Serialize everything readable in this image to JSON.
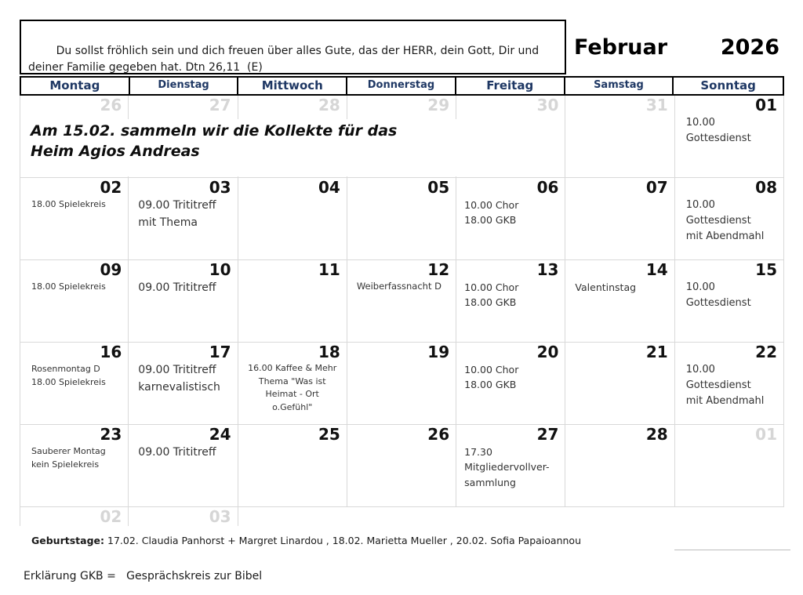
{
  "header": {
    "quote": "Du sollst fröhlich sein und dich freuen über alles Gute, das der HERR, dein Gott, Dir und deiner Familie gegeben hat. Dtn 26,11  (E)",
    "month": "Februar",
    "year": "2026"
  },
  "weekdays": [
    {
      "label": "Montag",
      "size": "big"
    },
    {
      "label": "Dienstag",
      "size": "small"
    },
    {
      "label": "Mittwoch",
      "size": "big"
    },
    {
      "label": "Donnerstag",
      "size": "small"
    },
    {
      "label": "Freitag",
      "size": "big"
    },
    {
      "label": "Samstag",
      "size": "small"
    },
    {
      "label": "Sonntag",
      "size": "big"
    }
  ],
  "announcement": {
    "lines": [
      "Am 15.02. sammeln wir die Kollekte für das",
      "Heim Agios Andreas"
    ]
  },
  "weeks": [
    [
      {
        "day": "26",
        "muted": true,
        "events": []
      },
      {
        "day": "27",
        "muted": true,
        "events": []
      },
      {
        "day": "28",
        "muted": true,
        "events": []
      },
      {
        "day": "29",
        "muted": true,
        "events": []
      },
      {
        "day": "30",
        "muted": true,
        "events": []
      },
      {
        "day": "31",
        "muted": true,
        "events": []
      },
      {
        "day": "01",
        "muted": false,
        "events": [
          "10.00",
          "Gottesdienst"
        ]
      }
    ],
    [
      {
        "day": "02",
        "muted": false,
        "events": [
          "18.00 Spielekreis"
        ]
      },
      {
        "day": "03",
        "muted": false,
        "events": [
          "09.00 Trititreff",
          "mit Thema"
        ]
      },
      {
        "day": "04",
        "muted": false,
        "events": []
      },
      {
        "day": "05",
        "muted": false,
        "events": []
      },
      {
        "day": "06",
        "muted": false,
        "events": [
          "10.00 Chor",
          "18.00 GKB"
        ]
      },
      {
        "day": "07",
        "muted": false,
        "events": []
      },
      {
        "day": "08",
        "muted": false,
        "events": [
          "10.00",
          "Gottesdienst",
          "mit Abendmahl"
        ]
      }
    ],
    [
      {
        "day": "09",
        "muted": false,
        "events": [
          "18.00 Spielekreis"
        ]
      },
      {
        "day": "10",
        "muted": false,
        "events": [
          "09.00 Trititreff"
        ]
      },
      {
        "day": "11",
        "muted": false,
        "events": []
      },
      {
        "day": "12",
        "muted": false,
        "events": [
          "Weiberfassnacht D"
        ]
      },
      {
        "day": "13",
        "muted": false,
        "events": [
          "10.00 Chor",
          "18.00 GKB"
        ]
      },
      {
        "day": "14",
        "muted": false,
        "events": [
          "Valentinstag"
        ]
      },
      {
        "day": "15",
        "muted": false,
        "events": [
          "10.00",
          "Gottesdienst"
        ]
      }
    ],
    [
      {
        "day": "16",
        "muted": false,
        "events": [
          "Rosenmontag D",
          "18.00 Spielekreis"
        ]
      },
      {
        "day": "17",
        "muted": false,
        "events": [
          "09.00 Trititreff",
          "karnevalistisch"
        ]
      },
      {
        "day": "18",
        "muted": false,
        "align": "center",
        "events": [
          "16.00 Kaffee & Mehr",
          "Thema \"Was ist",
          "Heimat - Ort",
          "o.Gefühl\""
        ]
      },
      {
        "day": "19",
        "muted": false,
        "events": []
      },
      {
        "day": "20",
        "muted": false,
        "events": [
          "10.00 Chor",
          "18.00 GKB"
        ]
      },
      {
        "day": "21",
        "muted": false,
        "events": []
      },
      {
        "day": "22",
        "muted": false,
        "events": [
          "10.00",
          "Gottesdienst",
          "mit Abendmahl"
        ]
      }
    ],
    [
      {
        "day": "23",
        "muted": false,
        "events": [
          "Sauberer Montag",
          "kein Spielekreis"
        ]
      },
      {
        "day": "24",
        "muted": false,
        "events": [
          "09.00 Trititreff"
        ]
      },
      {
        "day": "25",
        "muted": false,
        "events": []
      },
      {
        "day": "26",
        "muted": false,
        "events": []
      },
      {
        "day": "27",
        "muted": false,
        "events": [
          "17.30",
          "Mitgliedervollver-",
          "sammlung"
        ]
      },
      {
        "day": "28",
        "muted": false,
        "events": []
      },
      {
        "day": "01",
        "muted": true,
        "events": []
      }
    ]
  ],
  "partial_week": [
    {
      "day": "02"
    },
    {
      "day": "03"
    }
  ],
  "footer": {
    "birthdays_label": "Geburtstage:",
    "birthdays": "17.02. Claudia Panhorst + Margret Linardou , 18.02. Marietta Mueller , 20.02. Sofia Papaioannou",
    "legend": "Erklärung GKB =   Gesprächskreis zur Bibel"
  },
  "colors": {
    "weekday_header_text": "#1f3864",
    "muted_day_number": "#d6d6d6",
    "grid_line": "#d9d9d9",
    "header_border": "#000000"
  }
}
